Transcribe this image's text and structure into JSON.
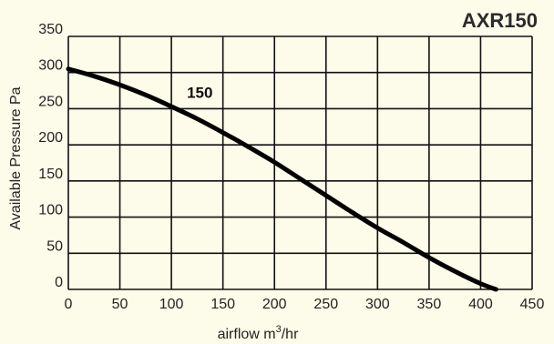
{
  "chart_data": {
    "type": "line",
    "title": "AXR150",
    "xlabel": "airflow m",
    "xlabel_sup": "3",
    "xlabel_suffix": "/hr",
    "ylabel": "Available Pressure Pa",
    "xlim": [
      0,
      450
    ],
    "ylim": [
      0,
      350
    ],
    "x_ticks": [
      0,
      50,
      100,
      150,
      200,
      250,
      300,
      350,
      400,
      450
    ],
    "y_ticks": [
      0,
      50,
      100,
      150,
      200,
      250,
      300,
      350
    ],
    "grid": true,
    "background": "#fdfbe9",
    "line_color": "#000000",
    "series": [
      {
        "name": "150",
        "label_at": [
          115,
          265
        ],
        "x": [
          0,
          25,
          50,
          75,
          100,
          125,
          150,
          175,
          200,
          225,
          250,
          275,
          300,
          325,
          350,
          375,
          400,
          415
        ],
        "y": [
          305,
          295,
          283,
          269,
          253,
          236,
          217,
          197,
          176,
          153,
          130,
          107,
          85,
          65,
          44,
          25,
          8,
          0
        ]
      }
    ]
  }
}
